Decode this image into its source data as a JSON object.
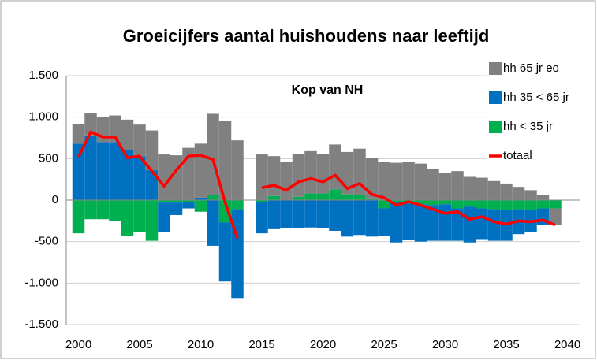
{
  "chart_data": {
    "type": "bar",
    "title": "Groeicijfers aantal huishoudens naar leeftijd",
    "annotation": "Kop van NH",
    "x": [
      2000,
      2001,
      2002,
      2003,
      2004,
      2005,
      2006,
      2007,
      2008,
      2009,
      2010,
      2011,
      2012,
      2013,
      2014,
      2015,
      2016,
      2017,
      2018,
      2019,
      2020,
      2021,
      2022,
      2023,
      2024,
      2025,
      2026,
      2027,
      2028,
      2029,
      2030,
      2031,
      2032,
      2033,
      2034,
      2035,
      2036,
      2037,
      2038,
      2039
    ],
    "series": [
      {
        "name": "hh 65 jr eo",
        "color": "#808080",
        "values": [
          240,
          270,
          300,
          320,
          370,
          380,
          480,
          550,
          540,
          630,
          650,
          980,
          950,
          720,
          null,
          550,
          480,
          460,
          520,
          510,
          480,
          540,
          510,
          560,
          490,
          460,
          450,
          460,
          440,
          380,
          330,
          350,
          280,
          270,
          230,
          200,
          160,
          120,
          60,
          -200
        ]
      },
      {
        "name": "hh 35 < 65 jr",
        "color": "#0070c0",
        "values": [
          680,
          780,
          700,
          700,
          600,
          530,
          360,
          -350,
          -150,
          -80,
          30,
          -550,
          -710,
          -1070,
          null,
          -380,
          -350,
          -340,
          -340,
          -330,
          -340,
          -370,
          -440,
          -420,
          -440,
          -330,
          -490,
          -440,
          -450,
          -430,
          -440,
          -390,
          -430,
          -370,
          -380,
          -370,
          -300,
          -260,
          -200,
          0
        ]
      },
      {
        "name": "hh < 35 jr",
        "color": "#00b050",
        "values": [
          -400,
          -230,
          -230,
          -250,
          -430,
          -380,
          -490,
          -30,
          -30,
          -20,
          -140,
          60,
          -270,
          -110,
          null,
          -20,
          50,
          0,
          40,
          80,
          80,
          130,
          70,
          60,
          20,
          -100,
          -20,
          -40,
          -50,
          -60,
          -50,
          -100,
          -80,
          -100,
          -110,
          -120,
          -110,
          -120,
          -100,
          -100
        ]
      },
      {
        "name": "totaal",
        "type": "line",
        "color": "#ff0000",
        "values": [
          520,
          820,
          760,
          760,
          510,
          530,
          350,
          170,
          360,
          530,
          540,
          490,
          -30,
          -460,
          null,
          150,
          180,
          120,
          220,
          260,
          220,
          300,
          140,
          200,
          70,
          30,
          -60,
          -20,
          -60,
          -110,
          -160,
          -140,
          -230,
          -200,
          -260,
          -290,
          -250,
          -260,
          -240,
          -300
        ]
      }
    ],
    "xlim": [
      1999,
      2041
    ],
    "xticks": [
      2000,
      2005,
      2010,
      2015,
      2020,
      2025,
      2030,
      2035,
      2040
    ],
    "ylim": [
      -1500,
      1500
    ],
    "yticks": [
      {
        "value": -1500,
        "label": "-1.500"
      },
      {
        "value": -1000,
        "label": "-1.000"
      },
      -500,
      0,
      500,
      {
        "value": 1000,
        "label": "1.000"
      },
      {
        "value": 1500,
        "label": "1.500"
      }
    ],
    "grid": true
  }
}
